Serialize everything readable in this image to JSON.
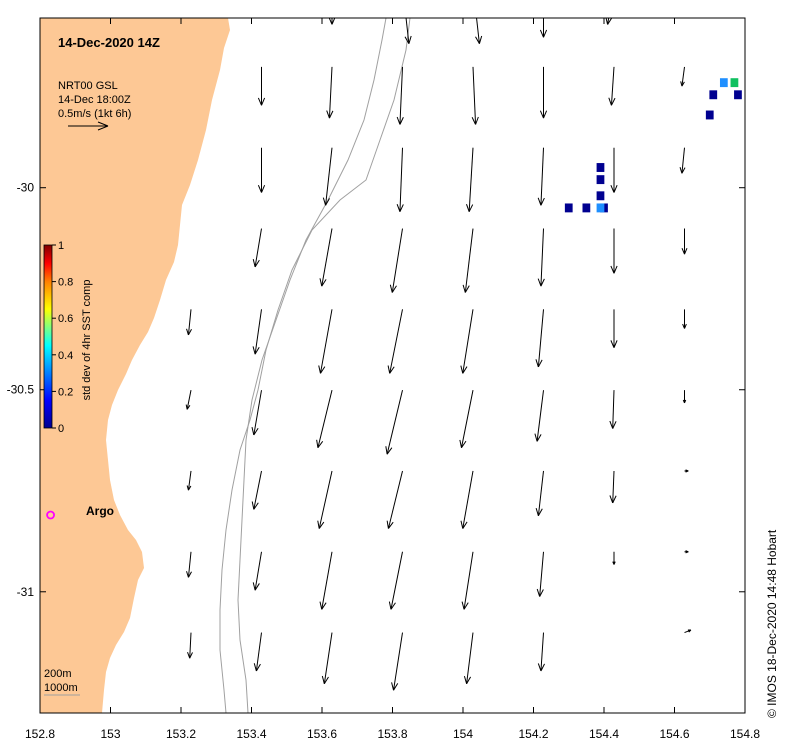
{
  "title": "14-Dec-2020 14Z",
  "product": {
    "line1": "NRT00 GSL",
    "line2": "14-Dec 18:00Z",
    "line3": "0.5m/s (1kt 6h)"
  },
  "colorbar": {
    "label": "std dev of 4hr SST comp",
    "ticks": [
      "0",
      "0.2",
      "0.4",
      "0.6",
      "0.8",
      "1"
    ],
    "min": 0,
    "max": 1
  },
  "argo": {
    "label": "Argo",
    "lon": 152.83,
    "lat": -30.81,
    "color": "#ff00ff"
  },
  "contours": {
    "line1": "200m",
    "line2": "1000m"
  },
  "credit": "© IMOS 18-Dec-2020 14:48 Hobart",
  "axes": {
    "lon_ticks": [
      "152.8",
      "153",
      "153.2",
      "153.4",
      "153.6",
      "153.8",
      "154",
      "154.2",
      "154.4",
      "154.6",
      "154.8"
    ],
    "lat_ticks": [
      "-30",
      "-30.5",
      "-31"
    ],
    "lon_range": [
      152.8,
      154.8
    ],
    "lat_range": [
      -31.3,
      -29.58
    ]
  },
  "colors": {
    "land": "#fdc895",
    "contour": "#a0a0a0",
    "sst_low": "#000090",
    "sst_mid": "#1f8fff",
    "sst_high": "#10c060"
  },
  "chart_data": {
    "type": "vector-field",
    "lon": [
      153.0,
      153.2,
      153.4,
      153.6,
      153.8,
      154.0,
      154.2,
      154.4,
      154.6,
      154.8
    ],
    "lat": [
      -29.6,
      -29.8,
      -30.0,
      -30.2,
      -30.4,
      -30.6,
      -30.8,
      -31.0,
      -31.2
    ],
    "u_m_s": [
      [
        0.0,
        0.0,
        0.0,
        0.0,
        0.05,
        0.05,
        0.0,
        -0.05,
        -0.03,
        0.0
      ],
      [
        0.0,
        0.0,
        0.0,
        -0.02,
        -0.02,
        0.02,
        0.0,
        -0.02,
        -0.02,
        0.0
      ],
      [
        0.0,
        0.0,
        0.0,
        -0.05,
        -0.02,
        -0.03,
        -0.02,
        0.0,
        -0.02,
        0.0
      ],
      [
        0.0,
        0.0,
        -0.05,
        -0.08,
        -0.08,
        -0.06,
        -0.02,
        0.0,
        0.0,
        0.0
      ],
      [
        0.0,
        -0.02,
        -0.05,
        -0.09,
        -0.1,
        -0.08,
        -0.04,
        0.0,
        0.0,
        0.0
      ],
      [
        0.0,
        -0.03,
        -0.06,
        -0.11,
        -0.12,
        -0.09,
        -0.05,
        -0.01,
        0.0,
        0.0
      ],
      [
        0.0,
        -0.02,
        -0.06,
        -0.1,
        -0.11,
        -0.08,
        -0.04,
        -0.01,
        0.03,
        0.0
      ],
      [
        0.0,
        -0.02,
        -0.05,
        -0.08,
        -0.09,
        -0.07,
        -0.03,
        0.0,
        0.03,
        0.0
      ],
      [
        0.0,
        -0.01,
        -0.04,
        -0.06,
        -0.07,
        -0.05,
        -0.02,
        0.0,
        0.05,
        0.0
      ]
    ],
    "v_m_s": [
      [
        0.0,
        0.0,
        -0.2,
        -0.3,
        -0.45,
        -0.45,
        -0.4,
        -0.3,
        -0.2,
        0.0
      ],
      [
        0.0,
        0.0,
        -0.3,
        -0.4,
        -0.45,
        -0.45,
        -0.4,
        -0.3,
        -0.15,
        0.0
      ],
      [
        0.0,
        0.0,
        -0.35,
        -0.45,
        -0.5,
        -0.5,
        -0.45,
        -0.35,
        -0.2,
        0.0
      ],
      [
        0.0,
        0.0,
        -0.3,
        -0.45,
        -0.5,
        -0.5,
        -0.45,
        -0.35,
        -0.2,
        0.0
      ],
      [
        0.0,
        -0.2,
        -0.35,
        -0.5,
        -0.5,
        -0.5,
        -0.45,
        -0.3,
        -0.15,
        0.0
      ],
      [
        0.0,
        -0.15,
        -0.35,
        -0.45,
        -0.5,
        -0.45,
        -0.4,
        -0.3,
        -0.1,
        0.0
      ],
      [
        0.0,
        -0.15,
        -0.3,
        -0.45,
        -0.45,
        -0.45,
        -0.35,
        -0.25,
        0.0,
        0.0
      ],
      [
        0.0,
        -0.2,
        -0.3,
        -0.45,
        -0.45,
        -0.45,
        -0.35,
        -0.1,
        0.0,
        0.0
      ],
      [
        0.0,
        -0.2,
        -0.3,
        -0.4,
        -0.45,
        -0.4,
        -0.3,
        0.0,
        0.02,
        0.0
      ]
    ],
    "sst_cells": [
      {
        "lon": 154.39,
        "lat": -29.95,
        "v": 0.0
      },
      {
        "lon": 154.39,
        "lat": -29.98,
        "v": 0.0
      },
      {
        "lon": 154.39,
        "lat": -30.02,
        "v": 0.0
      },
      {
        "lon": 154.4,
        "lat": -30.05,
        "v": 0.0
      },
      {
        "lon": 154.3,
        "lat": -30.05,
        "v": 0.0
      },
      {
        "lon": 154.35,
        "lat": -30.05,
        "v": 0.0
      },
      {
        "lon": 154.39,
        "lat": -30.05,
        "v": 0.25
      },
      {
        "lon": 154.74,
        "lat": -29.74,
        "v": 0.25
      },
      {
        "lon": 154.77,
        "lat": -29.74,
        "v": 0.45
      },
      {
        "lon": 154.71,
        "lat": -29.77,
        "v": 0.0
      },
      {
        "lon": 154.78,
        "lat": -29.77,
        "v": 0.0
      },
      {
        "lon": 154.7,
        "lat": -29.82,
        "v": 0.0
      }
    ]
  }
}
